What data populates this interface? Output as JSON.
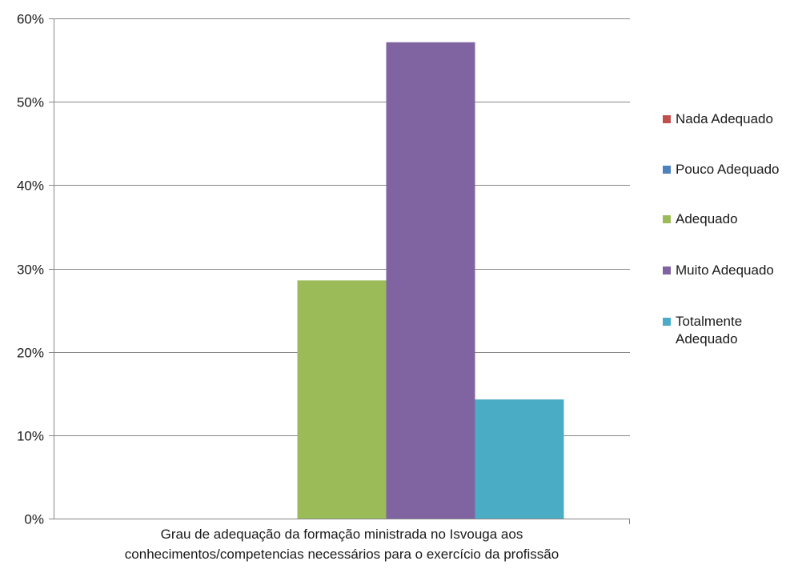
{
  "chart_data": {
    "type": "bar",
    "categories": [
      "Grau de adequação da formação ministrada no Isvouga aos conhecimentos/competencias necessários para o exercício da profissão"
    ],
    "category_label_lines": [
      "Grau de adequação da formação ministrada no Isvouga aos",
      "conhecimentos/competencias necessários para o exercício da profissão"
    ],
    "series": [
      {
        "name": "Nada Adequado",
        "values": [
          0
        ],
        "color": "#c0504d"
      },
      {
        "name": "Pouco Adequado",
        "values": [
          0
        ],
        "color": "#4f81bd"
      },
      {
        "name": "Adequado",
        "values": [
          0.2857
        ],
        "color": "#9bbb59"
      },
      {
        "name": "Muito Adequado",
        "values": [
          0.5714
        ],
        "color": "#8064a2"
      },
      {
        "name": "Totalmente Adequado",
        "values": [
          0.1429
        ],
        "color": "#4bacc6"
      }
    ],
    "ylim": [
      0,
      0.6
    ],
    "y_ticks": [
      0,
      0.1,
      0.2,
      0.3,
      0.4,
      0.5,
      0.6
    ],
    "y_tick_labels": [
      "0%",
      "10%",
      "20%",
      "30%",
      "40%",
      "50%",
      "60%"
    ],
    "grid": true,
    "legend_position": "right",
    "title": "",
    "xlabel": "",
    "ylabel": ""
  }
}
